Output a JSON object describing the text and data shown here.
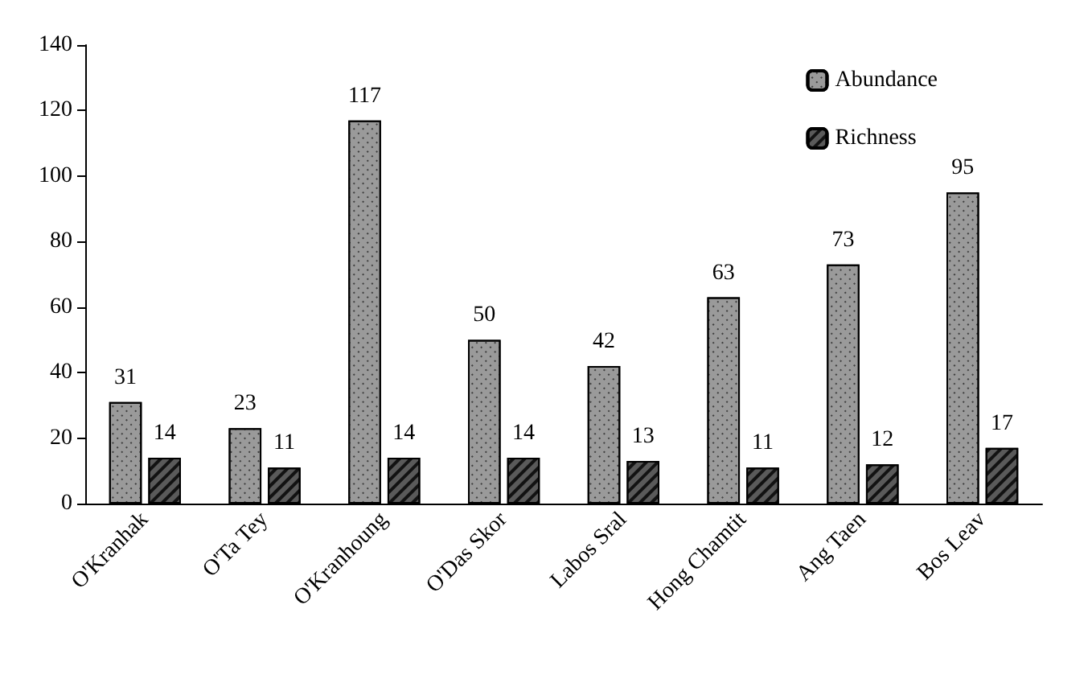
{
  "chart_data": {
    "type": "bar",
    "categories": [
      "O'Kranhak",
      "O'Ta Tey",
      "O'Kranhoung",
      "O'Das Skor",
      "Labos Sral",
      "Hong Chamtit",
      "Ang Taen",
      "Bos Leav"
    ],
    "series": [
      {
        "name": "Abundance",
        "color": "#9a9a9a",
        "values": [
          31,
          23,
          117,
          50,
          42,
          63,
          73,
          95
        ]
      },
      {
        "name": "Richness",
        "color": "#5a5a5a",
        "values": [
          14,
          11,
          14,
          14,
          13,
          11,
          12,
          17
        ]
      }
    ],
    "ylim": [
      0,
      140
    ],
    "yticks": [
      0,
      20,
      40,
      60,
      80,
      100,
      120,
      140
    ],
    "grid": false,
    "legend": "top right",
    "data_labels": true
  }
}
